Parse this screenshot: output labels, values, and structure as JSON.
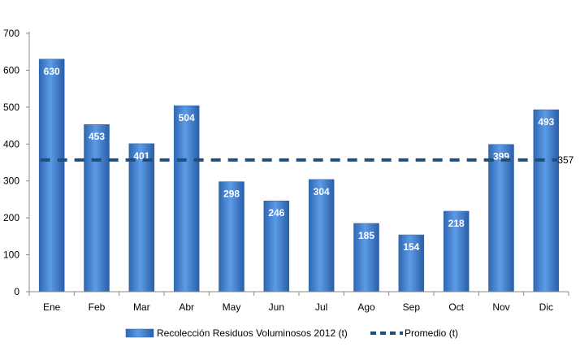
{
  "chart_data": {
    "type": "bar",
    "categories": [
      "Ene",
      "Feb",
      "Mar",
      "Abr",
      "May",
      "Jun",
      "Jul",
      "Ago",
      "Sep",
      "Oct",
      "Nov",
      "Dic"
    ],
    "series": [
      {
        "name": "Recolección Residuos Voluminosos 2012 (t)",
        "type": "bar",
        "values": [
          630,
          453,
          401,
          504,
          298,
          246,
          304,
          185,
          154,
          218,
          399,
          493
        ],
        "color": "#3a7bd5"
      },
      {
        "name": "Promedio (t)",
        "type": "line",
        "style": "dashed",
        "value": 357,
        "value_label": "357",
        "color": "#1f4e79"
      }
    ],
    "title": "",
    "xlabel": "",
    "ylabel": "",
    "ylim": [
      0,
      700
    ],
    "yticks": [
      0,
      100,
      200,
      300,
      400,
      500,
      600,
      700
    ],
    "grid": false,
    "legend_position": "bottom"
  }
}
